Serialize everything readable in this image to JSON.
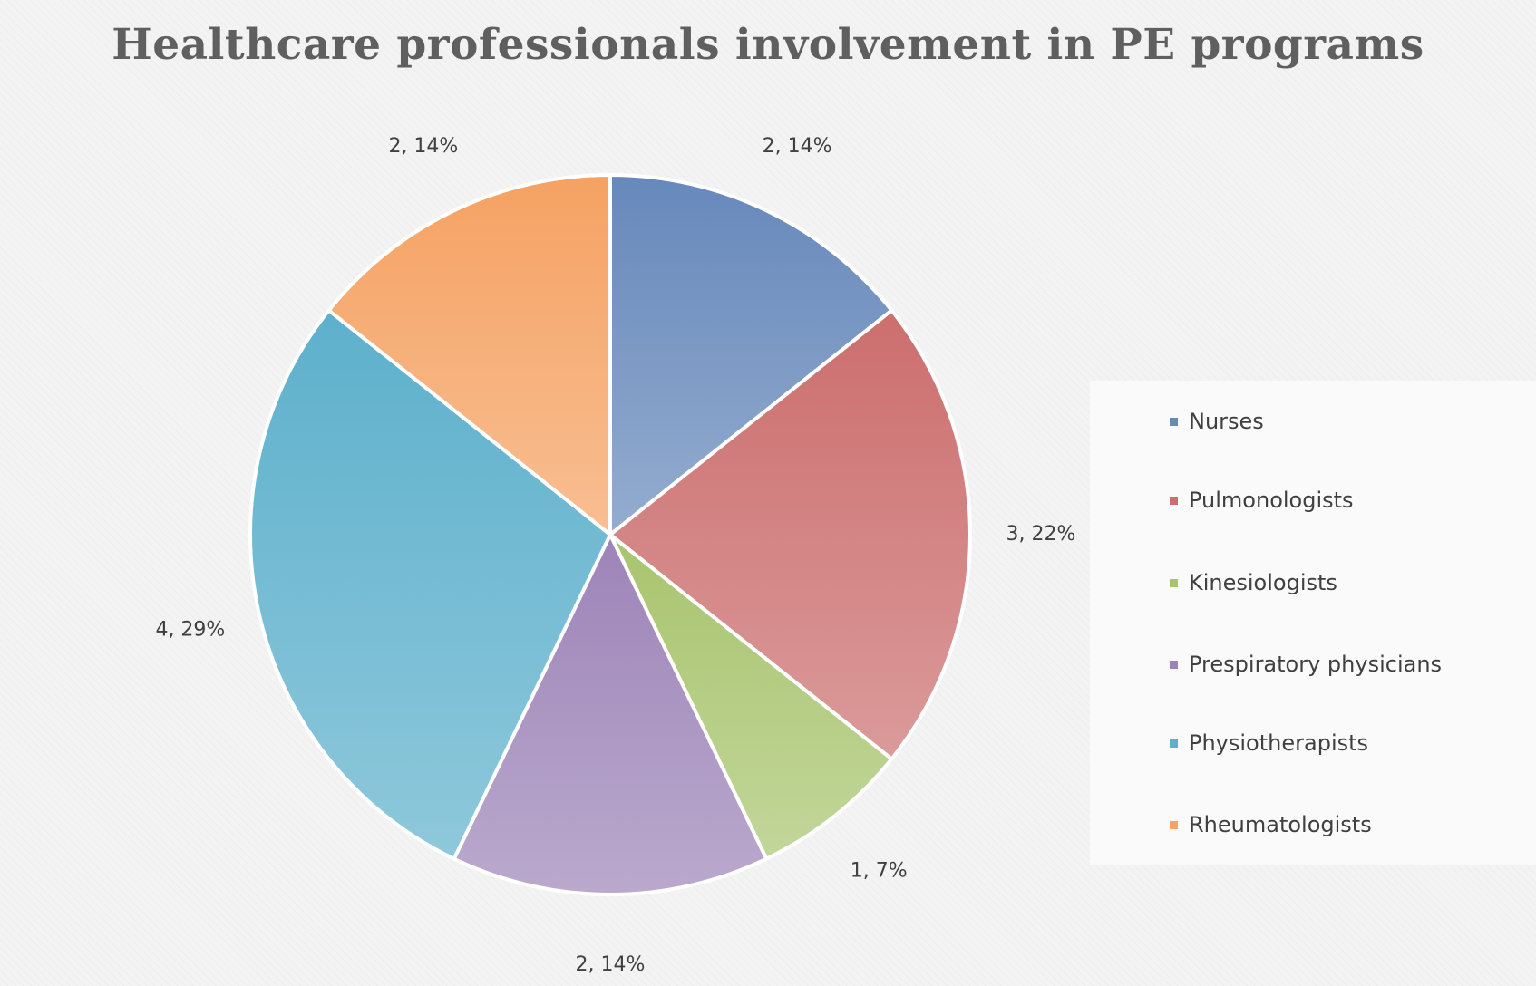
{
  "chart_data": {
    "type": "pie",
    "title": "Healthcare professionals involvement in PE programs",
    "categories": [
      "Nurses",
      "Pulmonologists",
      "Kinesiologists",
      "Prespiratory physicians",
      "Physiotherapists",
      "Rheumatologists"
    ],
    "values": [
      2,
      3,
      1,
      2,
      4,
      2
    ],
    "data_labels": [
      "2, 14%",
      "3, 22%",
      "1, 7%",
      "2, 14%",
      "4, 29%",
      "2, 14%"
    ],
    "colors": [
      "#6688bb",
      "#cc6e6e",
      "#a8c46e",
      "#9d84b8",
      "#5db0cc",
      "#f5a263"
    ],
    "legend_placement": "right"
  }
}
